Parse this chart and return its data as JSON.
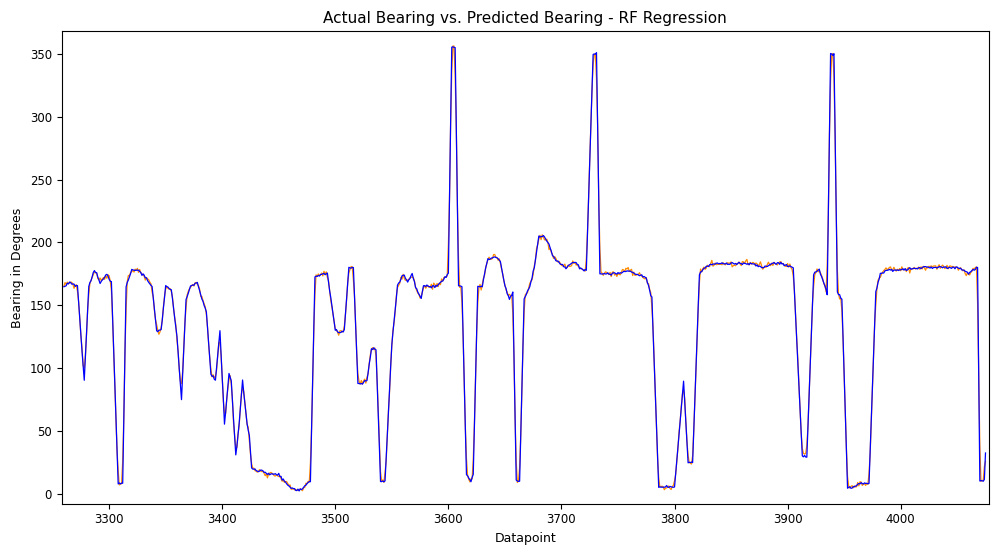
{
  "title": "Actual Bearing vs. Predicted Bearing - RF Regression",
  "xlabel": "Datapoint",
  "ylabel": "Bearing in Degrees",
  "xlim": [
    3258,
    4078
  ],
  "ylim": [
    -8,
    368
  ],
  "yticks": [
    0,
    50,
    100,
    150,
    200,
    250,
    300,
    350
  ],
  "xticks": [
    3300,
    3400,
    3500,
    3600,
    3700,
    3800,
    3900,
    4000
  ],
  "actual_color": "#0000ff",
  "predicted_color": "#ff8c00",
  "linewidth": 0.9,
  "figsize": [
    10.0,
    5.56
  ],
  "dpi": 100,
  "bg_color": "#ffffff"
}
